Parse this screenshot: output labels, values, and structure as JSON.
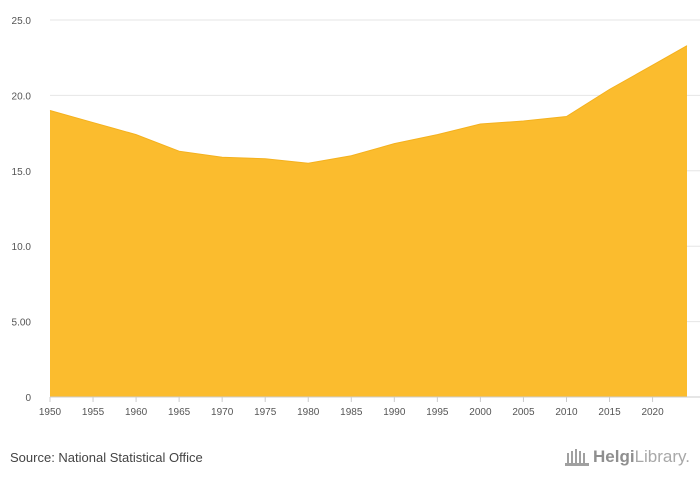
{
  "chart_data": {
    "type": "area",
    "title": "",
    "xlabel": "",
    "ylabel": "",
    "x": [
      1950,
      1955,
      1960,
      1965,
      1970,
      1975,
      1980,
      1985,
      1990,
      1995,
      2000,
      2005,
      2010,
      2015,
      2020,
      2024
    ],
    "values": [
      19.0,
      18.2,
      17.4,
      16.3,
      15.9,
      15.8,
      15.5,
      16.0,
      16.8,
      17.4,
      18.1,
      18.3,
      18.6,
      20.4,
      22.0,
      23.3
    ],
    "xlim": [
      1950,
      2024
    ],
    "ylim": [
      0,
      25
    ],
    "x_ticks": [
      "1950",
      "1955",
      "1960",
      "1965",
      "1970",
      "1975",
      "1980",
      "1985",
      "1990",
      "1995",
      "2000",
      "2005",
      "2010",
      "2015",
      "2020"
    ],
    "y_ticks": [
      "0",
      "5.00",
      "10.0",
      "15.0",
      "20.0",
      "25.0"
    ],
    "grid": true,
    "color": "#fbbc2e"
  },
  "footer": {
    "source": "Source: National Statistical Office",
    "brand_name": "Helgi",
    "brand_suffix": "Library."
  }
}
